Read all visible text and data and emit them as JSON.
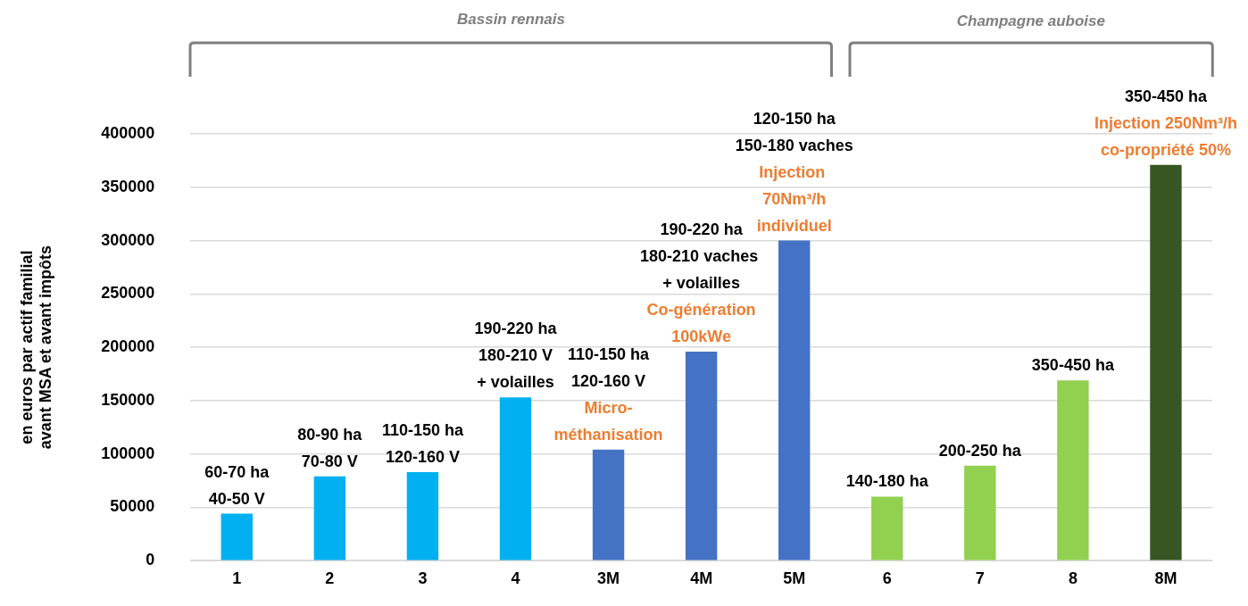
{
  "chart_data": {
    "type": "bar",
    "ylabel": "en euros par actif familial avant MSA et avant impôts",
    "categories": [
      "1",
      "2",
      "3",
      "4",
      "3M",
      "4M",
      "5M",
      "6",
      "7",
      "8",
      "8M"
    ],
    "values": [
      44000,
      79000,
      83000,
      153000,
      104000,
      196000,
      300000,
      60000,
      89000,
      169000,
      371000
    ],
    "colors": [
      "#00b0f0",
      "#00b0f0",
      "#00b0f0",
      "#00b0f0",
      "#4472c4",
      "#4472c4",
      "#4472c4",
      "#92d050",
      "#92d050",
      "#92d050",
      "#375623"
    ],
    "ylim": [
      0,
      400000
    ],
    "yticks": [
      0,
      50000,
      100000,
      150000,
      200000,
      250000,
      300000,
      350000,
      400000
    ],
    "grid": "y",
    "legend": false,
    "annotations": [
      {
        "text": "60-70 ha\n40-50 V",
        "x": "1",
        "y": 44000
      },
      {
        "text": "80-90 ha\n70-80 V",
        "x": "2",
        "y": 79000
      },
      {
        "text": "110-150 ha\n120-160 V",
        "x": "3",
        "y": 83000
      },
      {
        "text": "190-220 ha\n180-210 V\n+ volailles",
        "x": "4",
        "y": 153000
      },
      "110-150 ha\n120-160 V",
      {
        "text": "Micro-\nméthanisation",
        "x": "3M",
        "y": 104000
      },
      "190-220 ha\n180-210 vaches \n+ volailles",
      {
        "text": "Co-génération\n100kWe",
        "x": "4M",
        "y": 196000
      },
      "120-150 ha\n150-180 vaches",
      {
        "text": "Injection \n70Nm³/h\nindividuel",
        "x": "5M",
        "y": 300000
      },
      {
        "text": "140-180 ha",
        "x": "6",
        "y": 60000
      },
      {
        "text": "200-250 ha",
        "x": "7",
        "y": 89000
      },
      {
        "text": "350-450 ha",
        "x": "8",
        "y": 169000
      },
      "350-450 ha",
      {
        "text": "Injection 250Nm³/h\nco-propriété 50%",
        "x": "8M",
        "y": 371000
      },
      "Bassin rennais",
      "Champagne auboise"
    ]
  }
}
